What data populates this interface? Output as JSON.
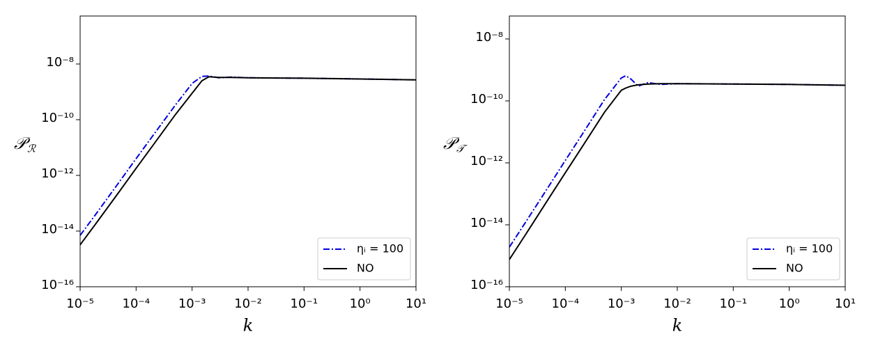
{
  "chart_data": [
    {
      "type": "line",
      "xlabel": "k",
      "ylabel": "𝒫",
      "ylabel_subscript": "ℛ",
      "xscale": "log",
      "yscale": "log",
      "grid": false,
      "legend": "lower right",
      "xlim": [
        1e-05,
        10
      ],
      "ylim": [
        1e-16,
        5.3e-07
      ],
      "xticks": [
        {
          "value": 1e-05,
          "label": "10⁻⁵"
        },
        {
          "value": 0.0001,
          "label": "10⁻⁴"
        },
        {
          "value": 0.001,
          "label": "10⁻³"
        },
        {
          "value": 0.01,
          "label": "10⁻²"
        },
        {
          "value": 0.1,
          "label": "10⁻¹"
        },
        {
          "value": 1,
          "label": "10⁰"
        },
        {
          "value": 10,
          "label": "10¹"
        }
      ],
      "yticks": [
        {
          "value": 1e-16,
          "label": "10⁻¹⁶"
        },
        {
          "value": 1e-14,
          "label": "10⁻¹⁴"
        },
        {
          "value": 1e-12,
          "label": "10⁻¹²"
        },
        {
          "value": 1e-10,
          "label": "10⁻¹⁰"
        },
        {
          "value": 1e-08,
          "label": "10⁻⁸"
        }
      ],
      "x": [
        1e-05,
        2e-05,
        5e-05,
        0.0001,
        0.0002,
        0.0005,
        0.001,
        0.0015,
        0.002,
        0.003,
        0.005,
        0.01,
        0.1,
        1,
        10
      ],
      "series": [
        {
          "name": "ηᵢ = 100",
          "color": "#0000dd",
          "dash": "dashdot",
          "values": [
            7e-15,
            4.6e-14,
            5.8e-13,
            4e-12,
            2.7e-11,
            3.3e-10,
            2e-09,
            3.6e-09,
            3.7e-09,
            3.2e-09,
            3.4e-09,
            3.2e-09,
            3.1e-09,
            2.9e-09,
            2.7e-09
          ]
        },
        {
          "name": "NO",
          "color": "#000000",
          "dash": "solid",
          "values": [
            3.2e-15,
            2.1e-14,
            2.6e-13,
            1.8e-12,
            1.2e-11,
            1.5e-10,
            8.9e-10,
            2.5e-09,
            3.5e-09,
            3.3e-09,
            3.3e-09,
            3.2e-09,
            3.1e-09,
            2.9e-09,
            2.7e-09
          ]
        }
      ]
    },
    {
      "type": "line",
      "xlabel": "k",
      "ylabel": "𝒫",
      "ylabel_subscript": "𝒯",
      "xscale": "log",
      "yscale": "log",
      "grid": false,
      "legend": "lower right",
      "xlim": [
        1e-05,
        10
      ],
      "ylim": [
        1e-16,
        5.5e-08
      ],
      "xticks": [
        {
          "value": 1e-05,
          "label": "10⁻⁵"
        },
        {
          "value": 0.0001,
          "label": "10⁻⁴"
        },
        {
          "value": 0.001,
          "label": "10⁻³"
        },
        {
          "value": 0.01,
          "label": "10⁻²"
        },
        {
          "value": 0.1,
          "label": "10⁻¹"
        },
        {
          "value": 1,
          "label": "10⁰"
        },
        {
          "value": 10,
          "label": "10¹"
        }
      ],
      "yticks": [
        {
          "value": 1e-16,
          "label": "10⁻¹⁶"
        },
        {
          "value": 1e-14,
          "label": "10⁻¹⁴"
        },
        {
          "value": 1e-12,
          "label": "10⁻¹²"
        },
        {
          "value": 1e-10,
          "label": "10⁻¹⁰"
        },
        {
          "value": 1e-08,
          "label": "10⁻⁸"
        }
      ],
      "x": [
        1e-05,
        2e-05,
        5e-05,
        0.0001,
        0.0002,
        0.0005,
        0.001,
        0.0012,
        0.0015,
        0.002,
        0.003,
        0.005,
        0.01,
        0.1,
        1,
        10
      ],
      "series": [
        {
          "name": "ηᵢ = 100",
          "color": "#0000dd",
          "dash": "dashdot",
          "values": [
            1.9e-15,
            1.3e-14,
            1.7e-13,
            1.2e-12,
            8.3e-12,
            1.1e-10,
            5.5e-10,
            6.5e-10,
            5e-10,
            3e-10,
            3.9e-10,
            3.4e-10,
            3.6e-10,
            3.5e-10,
            3.4e-10,
            3.2e-10
          ]
        },
        {
          "name": "NO",
          "color": "#000000",
          "dash": "solid",
          "values": [
            7.6e-16,
            5.2e-15,
            6.9e-14,
            4.8e-13,
            3.3e-12,
            4.3e-11,
            2.2e-10,
            2.6e-10,
            3e-10,
            3.3e-10,
            3.5e-10,
            3.6e-10,
            3.6e-10,
            3.5e-10,
            3.4e-10,
            3.2e-10
          ]
        }
      ]
    }
  ]
}
